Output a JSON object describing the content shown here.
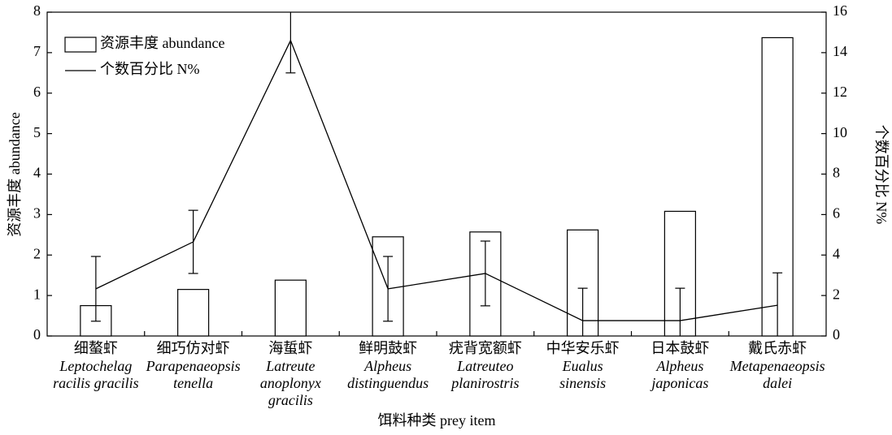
{
  "chart_data": {
    "type": "bar",
    "x_label": "饵料种类 prey item",
    "y_label": "资源丰度 abundance",
    "y2_label": "个数百分比 N%",
    "categories": [
      "细螯虾",
      "细巧仿对虾",
      "海蜇虾",
      "鲜明鼓虾",
      "疣背宽额虾",
      "中华安乐虾",
      "日本鼓虾",
      "戴氏赤虾"
    ],
    "category_sublabels": [
      [
        "Leptochelag",
        "racilis gracilis"
      ],
      [
        "Parapenaeopsis",
        "tenella"
      ],
      [
        "Latreute",
        "anoplonyx",
        "gracilis"
      ],
      [
        "Alpheus",
        "distinguendus"
      ],
      [
        "Latreuteo",
        "planirostris"
      ],
      [
        "Eualus",
        "sinensis"
      ],
      [
        "Alpheus",
        "japonicas"
      ],
      [
        "Metapenaeopsis",
        "dalei"
      ]
    ],
    "series": [
      {
        "name": "资源丰度 abundance",
        "type": "bar",
        "color": "#ffffff",
        "values": [
          0.75,
          1.15,
          1.38,
          2.45,
          2.57,
          2.62,
          3.08,
          7.37
        ]
      },
      {
        "name": "个数百分比 N%",
        "type": "line",
        "axis": "y2",
        "color": "#000000",
        "values": [
          2.33,
          4.65,
          14.6,
          2.33,
          3.09,
          0.76,
          0.76,
          1.52
        ],
        "errors": [
          1.6,
          1.56,
          1.6,
          1.6,
          1.6,
          1.6,
          1.6,
          1.6
        ]
      }
    ],
    "ylim": [
      0,
      8
    ],
    "yticks": [
      0,
      1,
      2,
      3,
      4,
      5,
      6,
      7,
      8
    ],
    "y2lim": [
      0,
      16
    ],
    "y2ticks": [
      0,
      2,
      4,
      6,
      8,
      10,
      12,
      14,
      16
    ],
    "legend": "top-left"
  }
}
